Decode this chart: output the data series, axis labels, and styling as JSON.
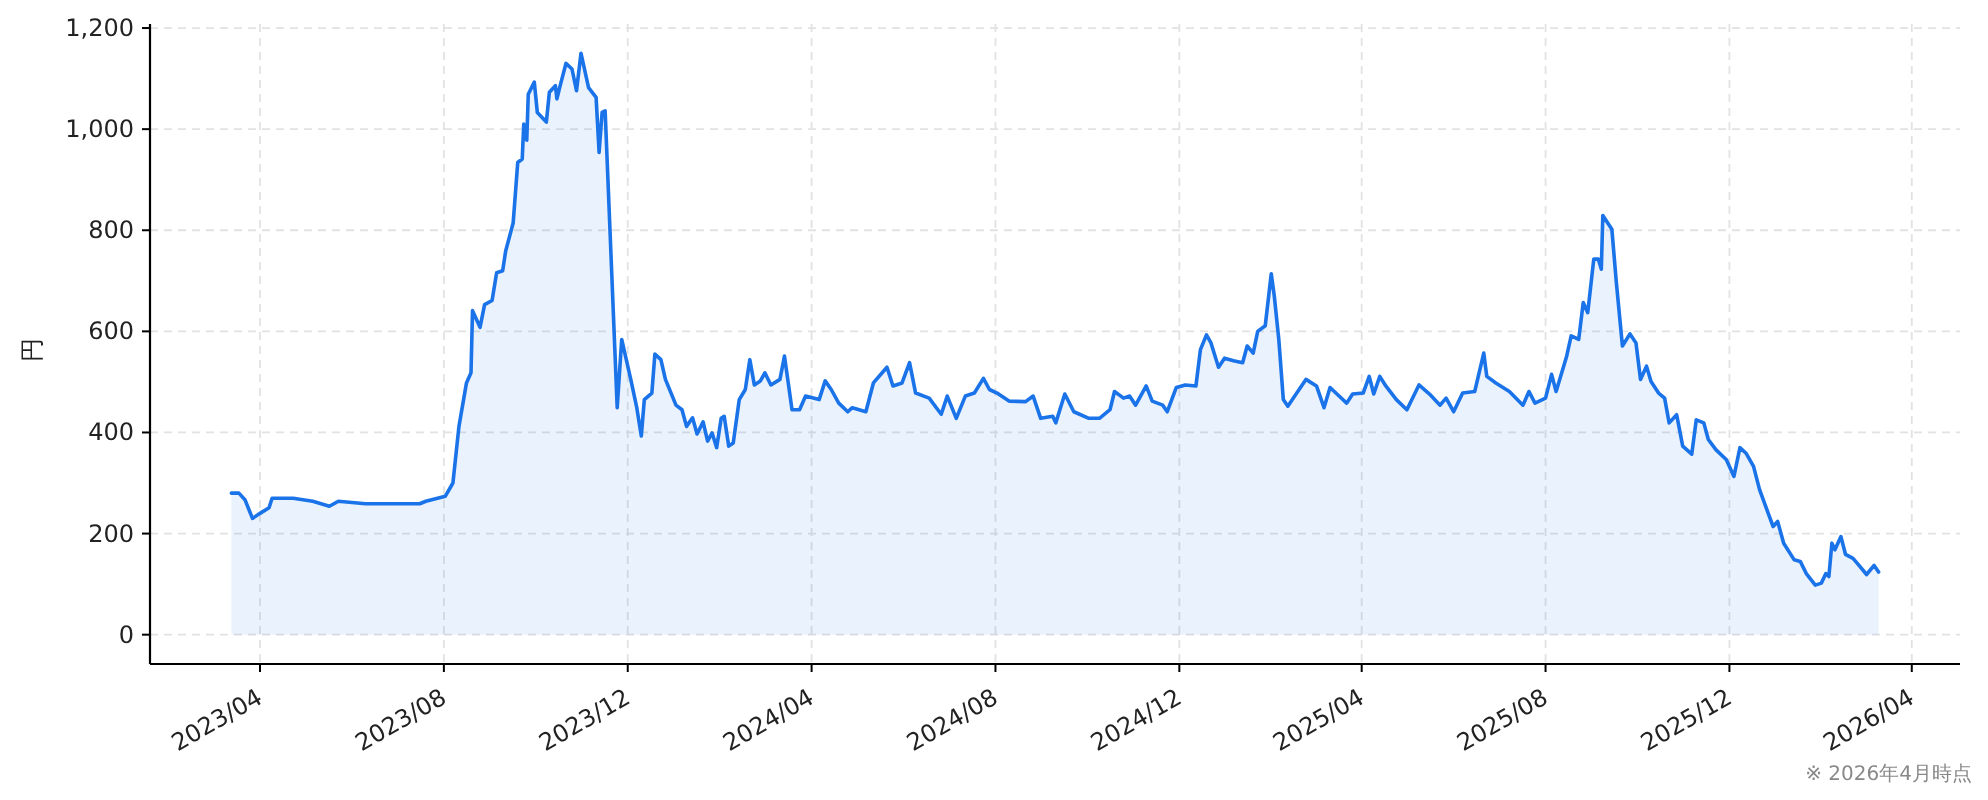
{
  "chart_data": {
    "type": "area",
    "ylabel": "円",
    "annotations": [
      "※ 2026年4月時点"
    ],
    "xlim": [
      "2023-01-18",
      "2026-05-03"
    ],
    "ylim": [
      -58,
      1208
    ],
    "xticks": [
      {
        "value": "2023-04-01",
        "label": "2023/04"
      },
      {
        "value": "2023-08-01",
        "label": "2023/08"
      },
      {
        "value": "2023-12-01",
        "label": "2023/12"
      },
      {
        "value": "2024-04-01",
        "label": "2024/04"
      },
      {
        "value": "2024-08-01",
        "label": "2024/08"
      },
      {
        "value": "2024-12-01",
        "label": "2024/12"
      },
      {
        "value": "2025-04-01",
        "label": "2025/04"
      },
      {
        "value": "2025-08-01",
        "label": "2025/08"
      },
      {
        "value": "2025-12-01",
        "label": "2025/12"
      },
      {
        "value": "2026-04-01",
        "label": "2026/04"
      }
    ],
    "yticks": [
      0,
      200,
      400,
      600,
      800,
      {
        "value": 1000,
        "label": "1,000"
      },
      {
        "value": 1200,
        "label": "1,200"
      }
    ],
    "grid": true,
    "x": [
      "2023-03-13",
      "2023-03-18",
      "2023-03-22",
      "2023-03-27",
      "2023-04-01",
      "2023-04-07",
      "2023-04-09",
      "2023-04-23",
      "2023-05-06",
      "2023-05-17",
      "2023-05-23",
      "2023-06-10",
      "2023-06-28",
      "2023-07-16",
      "2023-07-20",
      "2023-08-02",
      "2023-08-07",
      "2023-08-11",
      "2023-08-16",
      "2023-08-19",
      "2023-08-20",
      "2023-08-25",
      "2023-08-28",
      "2023-09-02",
      "2023-09-05",
      "2023-09-09",
      "2023-09-11",
      "2023-09-16",
      "2023-09-19",
      "2023-09-22",
      "2023-09-23",
      "2023-09-25",
      "2023-09-26",
      "2023-09-30",
      "2023-10-02",
      "2023-10-08",
      "2023-10-10",
      "2023-10-14",
      "2023-10-15",
      "2023-10-17",
      "2023-10-21",
      "2023-10-25",
      "2023-10-28",
      "2023-10-31",
      "2023-11-05",
      "2023-11-10",
      "2023-11-12",
      "2023-11-14",
      "2023-11-16",
      "2023-11-24",
      "2023-11-27",
      "2023-12-03",
      "2023-12-07",
      "2023-12-10",
      "2023-12-12",
      "2023-12-17",
      "2023-12-19",
      "2023-12-23",
      "2023-12-26",
      "2024-01-02",
      "2024-01-06",
      "2024-01-09",
      "2024-01-13",
      "2024-01-16",
      "2024-01-20",
      "2024-01-23",
      "2024-01-26",
      "2024-01-29",
      "2024-02-01",
      "2024-02-03",
      "2024-02-06",
      "2024-02-09",
      "2024-02-13",
      "2024-02-17",
      "2024-02-20",
      "2024-02-23",
      "2024-02-27",
      "2024-03-01",
      "2024-03-05",
      "2024-03-11",
      "2024-03-14",
      "2024-03-19",
      "2024-03-24",
      "2024-03-28",
      "2024-04-06",
      "2024-04-10",
      "2024-04-14",
      "2024-04-19",
      "2024-04-25",
      "2024-04-28",
      "2024-05-07",
      "2024-05-12",
      "2024-05-21",
      "2024-05-25",
      "2024-05-31",
      "2024-06-05",
      "2024-06-09",
      "2024-06-18",
      "2024-06-26",
      "2024-06-30",
      "2024-07-06",
      "2024-07-12",
      "2024-07-18",
      "2024-07-24",
      "2024-07-28",
      "2024-08-02",
      "2024-08-10",
      "2024-08-21",
      "2024-08-26",
      "2024-08-31",
      "2024-09-08",
      "2024-09-10",
      "2024-09-16",
      "2024-09-22",
      "2024-10-02",
      "2024-10-09",
      "2024-10-16",
      "2024-10-19",
      "2024-10-25",
      "2024-10-29",
      "2024-11-02",
      "2024-11-09",
      "2024-11-13",
      "2024-11-20",
      "2024-11-23",
      "2024-11-29",
      "2024-12-05",
      "2024-12-12",
      "2024-12-15",
      "2024-12-19",
      "2024-12-22",
      "2024-12-27",
      "2024-12-31",
      "2025-01-06",
      "2025-01-12",
      "2025-01-15",
      "2025-01-19",
      "2025-01-22",
      "2025-01-27",
      "2025-01-31",
      "2025-02-02",
      "2025-02-05",
      "2025-02-08",
      "2025-02-11",
      "2025-02-14",
      "2025-02-23",
      "2025-03-02",
      "2025-03-07",
      "2025-03-11",
      "2025-03-17",
      "2025-03-22",
      "2025-03-26",
      "2025-04-02",
      "2025-04-06",
      "2025-04-09",
      "2025-04-13",
      "2025-04-17",
      "2025-04-24",
      "2025-05-01",
      "2025-05-09",
      "2025-05-16",
      "2025-05-23",
      "2025-05-27",
      "2025-06-01",
      "2025-06-07",
      "2025-06-15",
      "2025-06-21",
      "2025-06-23",
      "2025-06-29",
      "2025-07-08",
      "2025-07-17",
      "2025-07-21",
      "2025-07-25",
      "2025-08-01",
      "2025-08-05",
      "2025-08-08",
      "2025-08-15",
      "2025-08-18",
      "2025-08-23",
      "2025-08-26",
      "2025-08-29",
      "2025-09-02",
      "2025-09-05",
      "2025-09-07",
      "2025-09-08",
      "2025-09-14",
      "2025-09-17",
      "2025-09-21",
      "2025-09-26",
      "2025-09-30",
      "2025-10-03",
      "2025-10-07",
      "2025-10-10",
      "2025-10-15",
      "2025-10-19",
      "2025-10-22",
      "2025-10-27",
      "2025-10-31",
      "2025-11-06",
      "2025-11-09",
      "2025-11-14",
      "2025-11-17",
      "2025-11-22",
      "2025-11-29",
      "2025-12-04",
      "2025-12-08",
      "2025-12-12",
      "2025-12-17",
      "2025-12-21",
      "2025-12-27",
      "2025-12-30",
      "2026-01-02",
      "2026-01-06",
      "2026-01-13",
      "2026-01-17",
      "2026-01-21",
      "2026-01-27",
      "2026-01-31",
      "2026-02-03",
      "2026-02-05",
      "2026-02-07",
      "2026-02-09",
      "2026-02-13",
      "2026-02-16",
      "2026-02-21",
      "2026-02-25",
      "2026-03-02",
      "2026-03-07",
      "2026-03-10"
    ],
    "series": [
      {
        "color": "#1a73e8",
        "values": [
          280,
          280,
          267,
          230,
          240,
          251,
          270,
          270,
          264,
          254,
          264,
          259,
          259,
          259,
          264,
          274,
          300,
          412,
          498,
          518,
          641,
          608,
          653,
          661,
          716,
          720,
          759,
          815,
          934,
          941,
          1010,
          978,
          1069,
          1093,
          1033,
          1014,
          1073,
          1086,
          1060,
          1084,
          1130,
          1119,
          1076,
          1150,
          1082,
          1063,
          954,
          1033,
          1036,
          449,
          584,
          505,
          449,
          393,
          465,
          478,
          555,
          544,
          505,
          454,
          445,
          412,
          429,
          397,
          421,
          383,
          399,
          370,
          428,
          432,
          373,
          379,
          465,
          485,
          544,
          494,
          502,
          518,
          494,
          505,
          551,
          445,
          445,
          472,
          465,
          502,
          485,
          458,
          441,
          449,
          441,
          498,
          529,
          492,
          498,
          538,
          478,
          468,
          436,
          472,
          428,
          472,
          478,
          507,
          485,
          478,
          462,
          461,
          472,
          428,
          432,
          419,
          476,
          441,
          428,
          428,
          445,
          481,
          468,
          472,
          454,
          492,
          462,
          454,
          441,
          489,
          494,
          492,
          564,
          593,
          577,
          529,
          547,
          542,
          538,
          571,
          557,
          600,
          611,
          714,
          670,
          584,
          465,
          452,
          465,
          505,
          492,
          449,
          489,
          472,
          458,
          476,
          478,
          511,
          476,
          511,
          492,
          465,
          445,
          494,
          476,
          454,
          468,
          441,
          478,
          481,
          557,
          511,
          498,
          481,
          454,
          481,
          458,
          468,
          515,
          481,
          551,
          591,
          584,
          657,
          637,
          743,
          743,
          723,
          829,
          802,
          696,
          571,
          595,
          577,
          505,
          531,
          501,
          478,
          468,
          419,
          435,
          373,
          357,
          425,
          419,
          386,
          366,
          346,
          313,
          370,
          359,
          333,
          287,
          238,
          214,
          224,
          181,
          148,
          145,
          121,
          98,
          102,
          121,
          115,
          181,
          168,
          194,
          159,
          151,
          137,
          119,
          137,
          124
        ]
      }
    ]
  }
}
